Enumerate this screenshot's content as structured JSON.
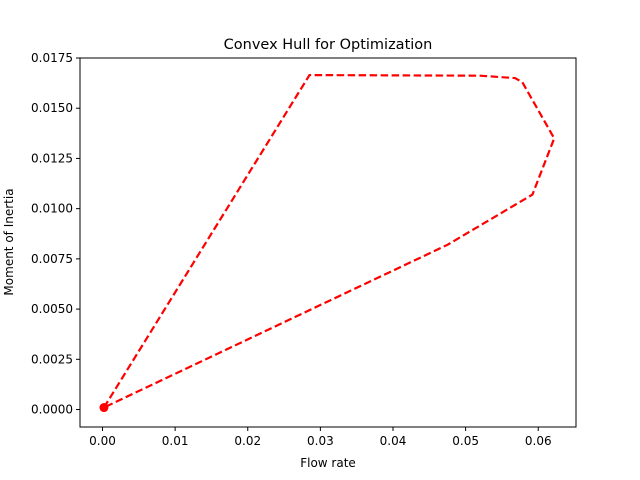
{
  "chart_data": {
    "type": "line",
    "title": "Convex Hull for Optimization",
    "xlabel": "Flow rate",
    "ylabel": "Moment of Inertia",
    "xlim": [
      -0.0031,
      0.0652
    ],
    "ylim": [
      -0.00087,
      0.0175
    ],
    "xticks": [
      0.0,
      0.01,
      0.02,
      0.03,
      0.04,
      0.05,
      0.06
    ],
    "xtick_labels": [
      "0.00",
      "0.01",
      "0.02",
      "0.03",
      "0.04",
      "0.05",
      "0.06"
    ],
    "yticks": [
      0.0,
      0.0025,
      0.005,
      0.0075,
      0.01,
      0.0125,
      0.015,
      0.0175
    ],
    "ytick_labels": [
      "0.0000",
      "0.0025",
      "0.0050",
      "0.0075",
      "0.0100",
      "0.0125",
      "0.0150",
      "0.0175"
    ],
    "grid": false,
    "series": [
      {
        "style": "dashed",
        "color": "#ff0000",
        "x": [
          0.0002,
          0.0285,
          0.052,
          0.0568,
          0.0578,
          0.0622,
          0.0592,
          0.0475,
          0.0002
        ],
        "y": [
          0.0001,
          0.01665,
          0.01662,
          0.0165,
          0.0163,
          0.0135,
          0.0107,
          0.0082,
          0.0001
        ]
      }
    ],
    "points": [
      {
        "x": 0.0002,
        "y": 0.0001,
        "color": "#ff0000"
      }
    ]
  }
}
